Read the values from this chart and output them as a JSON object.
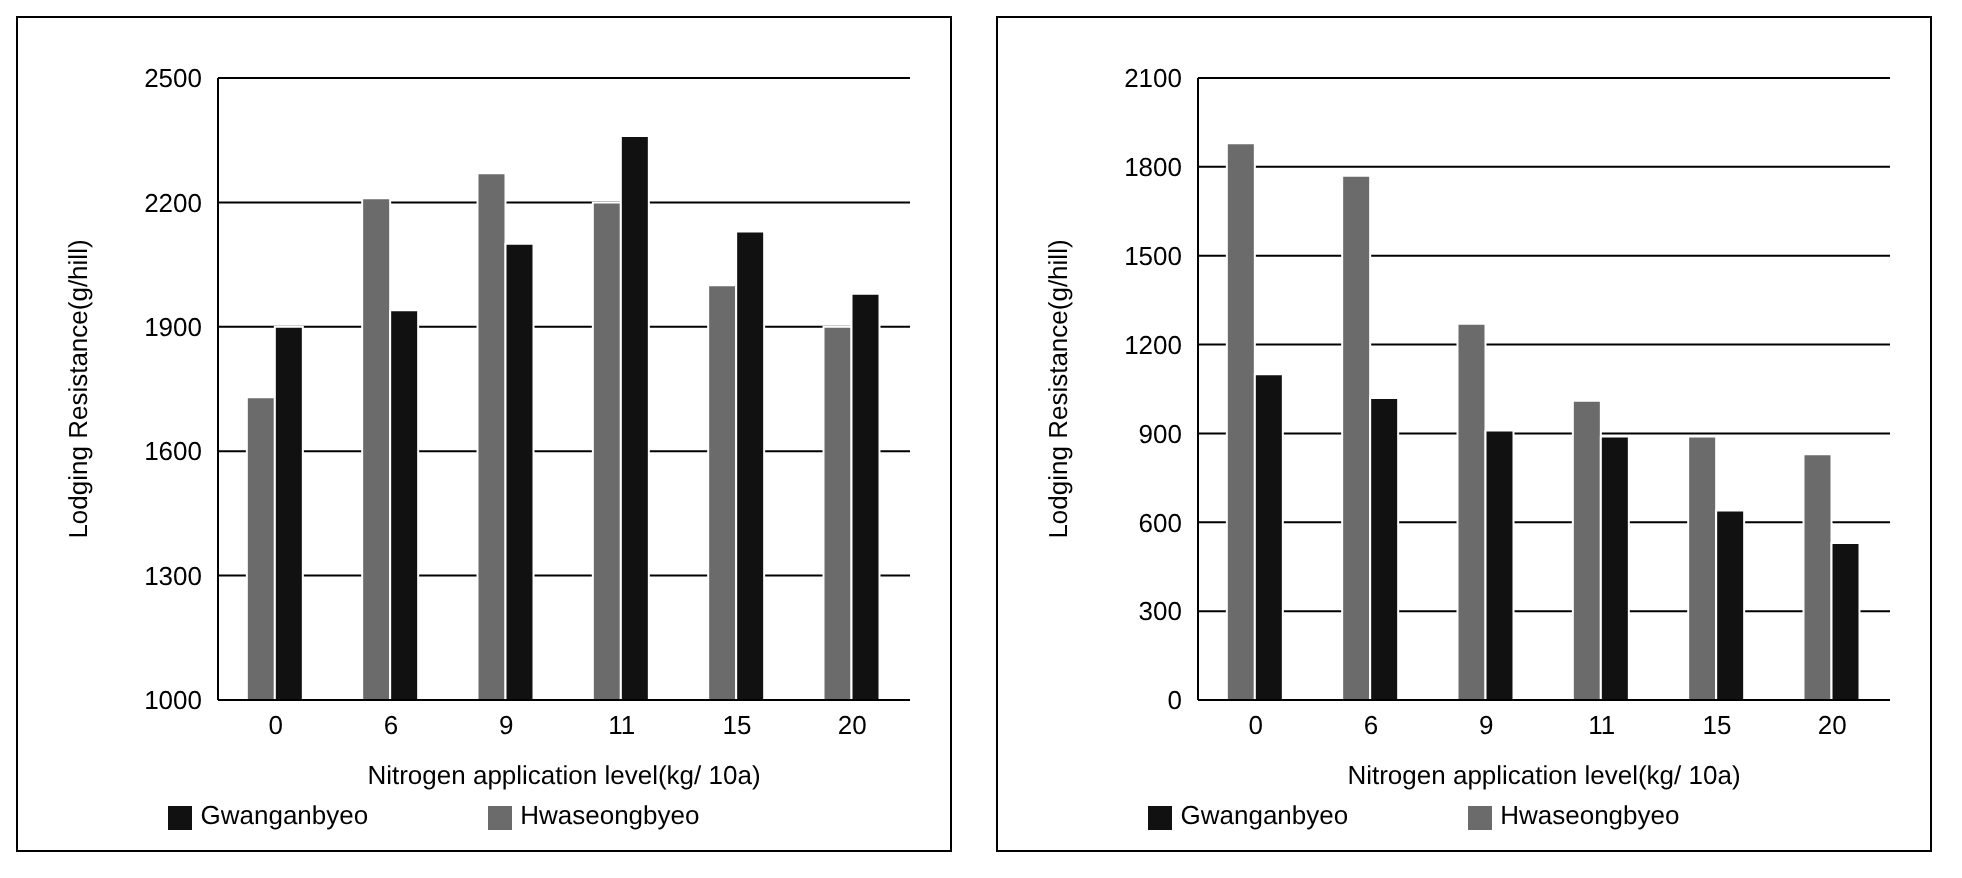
{
  "chart_data": [
    {
      "type": "bar",
      "xlabel": "Nitrogen application level(kg/ 10a)",
      "ylabel": "Lodging Resistance(g/hill)",
      "categories": [
        "0",
        "6",
        "9",
        "11",
        "15",
        "20"
      ],
      "series": [
        {
          "name": "Hwaseongbyeo",
          "color": "#6b6b6b",
          "values": [
            1730,
            2210,
            2270,
            2200,
            2000,
            1900
          ]
        },
        {
          "name": "Gwanganbyeo",
          "color": "#111111",
          "values": [
            1900,
            1940,
            2100,
            2360,
            2130,
            1980
          ]
        }
      ],
      "ylim": [
        1000,
        2500
      ],
      "yticks": [
        1000,
        1300,
        1600,
        1900,
        2200,
        2500
      ],
      "grid": "y",
      "legend": "bottom"
    },
    {
      "type": "bar",
      "xlabel": "Nitrogen application level(kg/ 10a)",
      "ylabel": "Lodging Resistance(g/hill)",
      "categories": [
        "0",
        "6",
        "9",
        "11",
        "15",
        "20"
      ],
      "series": [
        {
          "name": "Hwaseongbyeo",
          "color": "#6b6b6b",
          "values": [
            1880,
            1770,
            1270,
            1010,
            890,
            830
          ]
        },
        {
          "name": "Gwanganbyeo",
          "color": "#111111",
          "values": [
            1100,
            1020,
            910,
            890,
            640,
            530
          ]
        }
      ],
      "ylim": [
        0,
        2100
      ],
      "yticks": [
        0,
        300,
        600,
        900,
        1200,
        1500,
        1800,
        2100
      ],
      "grid": "y",
      "legend": "bottom"
    }
  ]
}
